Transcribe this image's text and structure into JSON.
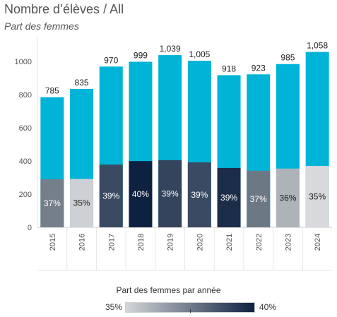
{
  "header": {
    "title": "Nombre d’élèves /  All",
    "subtitle": "Part des femmes"
  },
  "legend": {
    "title": "Part des femmes par année",
    "min_label": "35%",
    "max_label": "40%",
    "color_low": "#d4d6d9",
    "color_high": "#0e2140"
  },
  "colors": {
    "total_bar": "#00b4d8",
    "axis": "#555555",
    "gridline": "#e6e6e6"
  },
  "chart_data": {
    "type": "bar",
    "stacked": true,
    "categories": [
      "2015",
      "2016",
      "2017",
      "2018",
      "2019",
      "2020",
      "2021",
      "2022",
      "2023",
      "2024"
    ],
    "totals": [
      785,
      835,
      970,
      999,
      1039,
      1005,
      918,
      923,
      985,
      1058
    ],
    "total_labels": [
      "785",
      "835",
      "970",
      "999",
      "1,039",
      "1,005",
      "918",
      "923",
      "985",
      "1,058"
    ],
    "women_share_pct": [
      37,
      35,
      39,
      40,
      39,
      39,
      39,
      37,
      36,
      35
    ],
    "women_share_labels": [
      "37%",
      "35%",
      "39%",
      "40%",
      "39%",
      "39%",
      "39%",
      "37%",
      "36%",
      "35%"
    ],
    "women_bar_colors": [
      "#757f8b",
      "#cdd0d4",
      "#3a4a62",
      "#0e2140",
      "#33445c",
      "#3a4a62",
      "#1c2d4a",
      "#6d7885",
      "#aeb3ba",
      "#d7d9dc"
    ],
    "y_ticks": [
      0,
      200,
      400,
      600,
      800,
      1000
    ],
    "ylim": [
      0,
      1150
    ]
  }
}
